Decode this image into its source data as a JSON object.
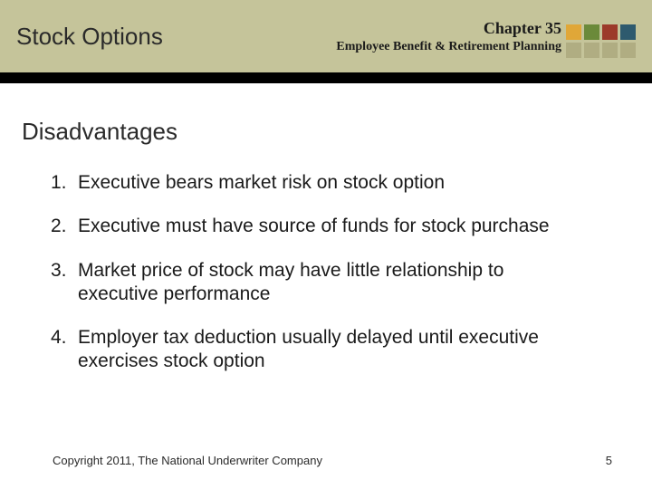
{
  "header": {
    "title": "Stock Options",
    "chapter": "Chapter 35",
    "subtitle": "Employee Benefit & Retirement Planning",
    "band_color": "#c5c49a",
    "bar_color": "#000000",
    "squares": {
      "top": [
        "#e0a738",
        "#6b8a3a",
        "#9c3a2a",
        "#2e5a6e"
      ],
      "bottom": [
        "#b0ad82",
        "#b0ad82",
        "#b0ad82",
        "#b0ad82"
      ]
    }
  },
  "section": {
    "heading": "Disadvantages",
    "items": [
      "Executive bears market risk on stock option",
      "Executive must have source of funds for stock purchase",
      "Market price of stock may have little relationship to executive performance",
      "Employer tax deduction usually delayed until executive exercises stock option"
    ]
  },
  "footer": {
    "copyright": "Copyright 2011, The National Underwriter Company",
    "page": "5"
  },
  "typography": {
    "title_fontsize": 26,
    "heading_fontsize": 26,
    "body_fontsize": 21,
    "chapter_fontsize": 18,
    "subtitle_fontsize": 14,
    "footer_fontsize": 13
  }
}
